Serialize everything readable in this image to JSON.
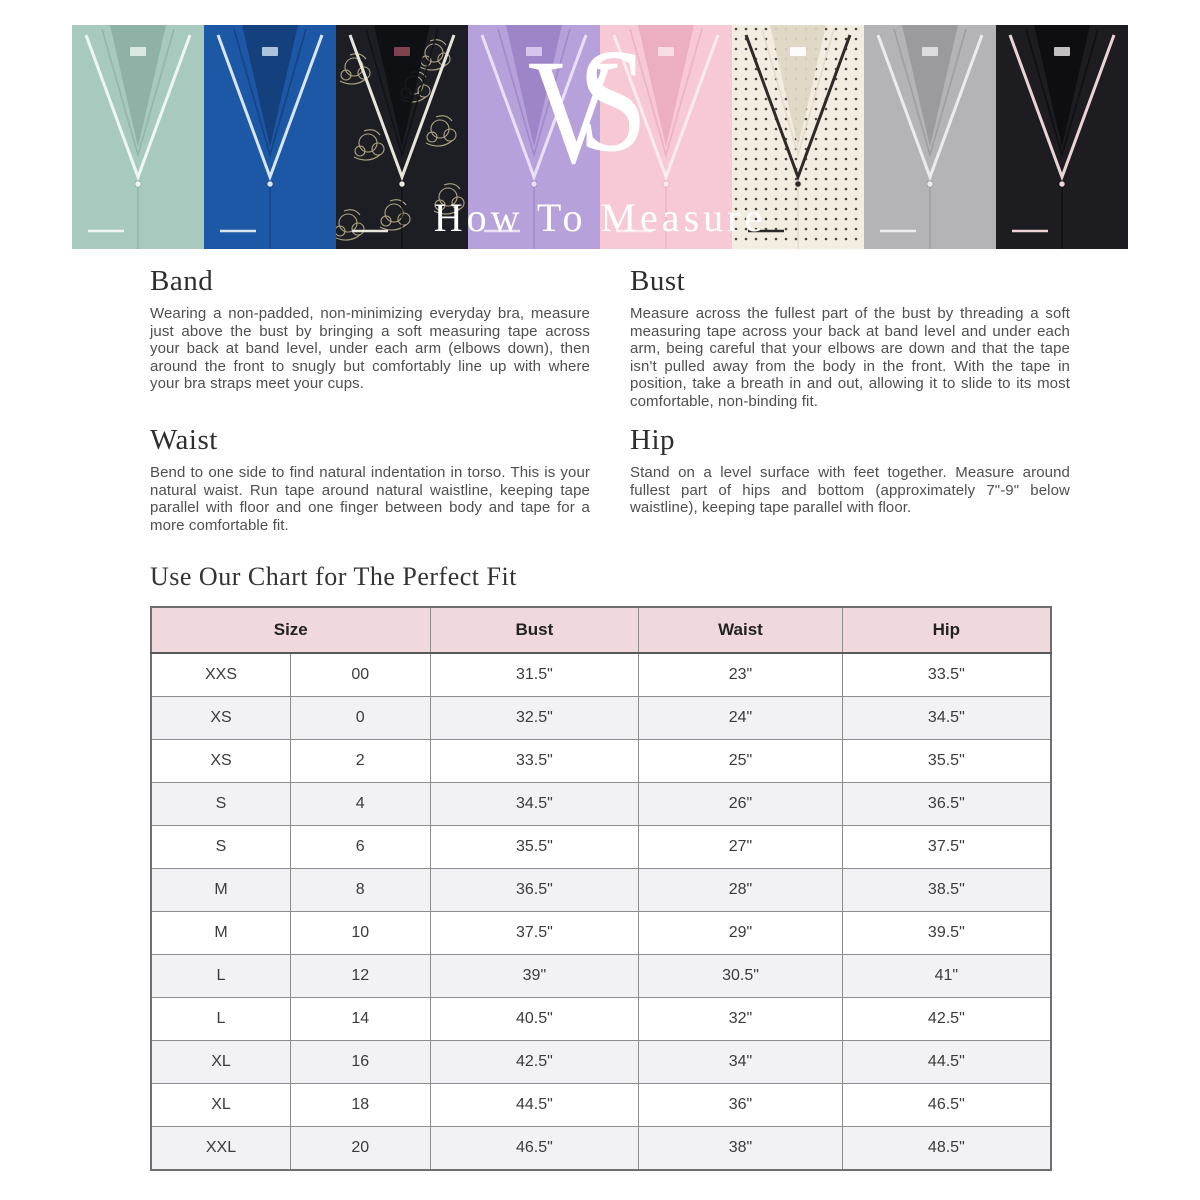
{
  "banner": {
    "logo_v": "V",
    "logo_s": "S",
    "title": "How To Measure",
    "shirts": [
      {
        "name": "mint-pajama-top",
        "body": "#a8cabe",
        "shade": "#8cb0a3",
        "piping": "#eef6f2",
        "pattern": "none",
        "pattern_color": "",
        "label_color": "#e2efe9"
      },
      {
        "name": "royal-blue-pajama-top",
        "body": "#1d58a6",
        "shade": "#143e7a",
        "piping": "#d8e5f2",
        "pattern": "none",
        "pattern_color": "",
        "label_color": "#bcd1e7"
      },
      {
        "name": "black-floral-pajama-top",
        "body": "#1d1e24",
        "shade": "#0e0f13",
        "piping": "#e8e5da",
        "pattern": "floral",
        "pattern_color": "#c7bb92",
        "label_color": "#8a4a55"
      },
      {
        "name": "lavender-pajama-top",
        "body": "#b7a1da",
        "shade": "#9b82c5",
        "piping": "#e9e0f6",
        "pattern": "none",
        "pattern_color": "",
        "label_color": "#d9cdef"
      },
      {
        "name": "pink-pajama-top",
        "body": "#f7c9d4",
        "shade": "#e9adbd",
        "piping": "#fdebef",
        "pattern": "none",
        "pattern_color": "",
        "label_color": "#fbe2e8"
      },
      {
        "name": "polka-dot-pajama-top",
        "body": "#f2ede0",
        "shade": "#ded7c4",
        "piping": "#2e2a28",
        "pattern": "dots",
        "pattern_color": "#4a4440",
        "label_color": "#ffffff"
      },
      {
        "name": "heather-gray-pajama-top",
        "body": "#b4b4b6",
        "shade": "#99999c",
        "piping": "#ececee",
        "pattern": "none",
        "pattern_color": "",
        "label_color": "#e3e3e5"
      },
      {
        "name": "black-pajama-top",
        "body": "#1c1c21",
        "shade": "#0d0d11",
        "piping": "#ecd3d6",
        "pattern": "none",
        "pattern_color": "",
        "label_color": "#d8d3d4"
      }
    ]
  },
  "sections": [
    {
      "title": "Band",
      "body": "Wearing a non-padded, non-minimizing everyday bra, measure just above the bust by bringing a soft measuring tape across your back at band level, under each arm (elbows down), then around the front to snugly but comfortably line up with where your bra straps meet your cups."
    },
    {
      "title": "Bust",
      "body": "Measure across the fullest part of the bust by threading a soft measuring tape across your back at band level and under each arm, being careful that your elbows are down and that the tape isn't pulled away from the body in the front. With the tape in position, take a breath in and out, allowing it to slide to its most comfortable, non-binding fit."
    },
    {
      "title": "Waist",
      "body": "Bend to one side to find natural indentation in torso. This is your natural waist. Run tape around natural waistline, keeping tape parallel with floor and one finger between body and tape for a more comfortable fit."
    },
    {
      "title": "Hip",
      "body": "Stand on a level surface with feet together. Measure around fullest part of hips and bottom (approximately 7\"-9\" below waistline), keeping tape parallel with floor."
    }
  ],
  "chart": {
    "heading": "Use Our Chart for The Perfect Fit",
    "header_bg": "#f0d9dc",
    "stripe_bg": "#f2f1f3"
  },
  "chart_data": {
    "type": "table",
    "columns": [
      "Size",
      "Bust",
      "Waist",
      "Hip"
    ],
    "rows": [
      [
        "XXS",
        "00",
        "31.5\"",
        "23\"",
        "33.5\""
      ],
      [
        "XS",
        "0",
        "32.5\"",
        "24\"",
        "34.5\""
      ],
      [
        "XS",
        "2",
        "33.5\"",
        "25\"",
        "35.5\""
      ],
      [
        "S",
        "4",
        "34.5\"",
        "26\"",
        "36.5\""
      ],
      [
        "S",
        "6",
        "35.5\"",
        "27\"",
        "37.5\""
      ],
      [
        "M",
        "8",
        "36.5\"",
        "28\"",
        "38.5\""
      ],
      [
        "M",
        "10",
        "37.5\"",
        "29\"",
        "39.5\""
      ],
      [
        "L",
        "12",
        "39\"",
        "30.5\"",
        "41\""
      ],
      [
        "L",
        "14",
        "40.5\"",
        "32\"",
        "42.5\""
      ],
      [
        "XL",
        "16",
        "42.5\"",
        "34\"",
        "44.5\""
      ],
      [
        "XL",
        "18",
        "44.5\"",
        "36\"",
        "46.5\""
      ],
      [
        "XXL",
        "20",
        "46.5\"",
        "38\"",
        "48.5\""
      ]
    ]
  }
}
